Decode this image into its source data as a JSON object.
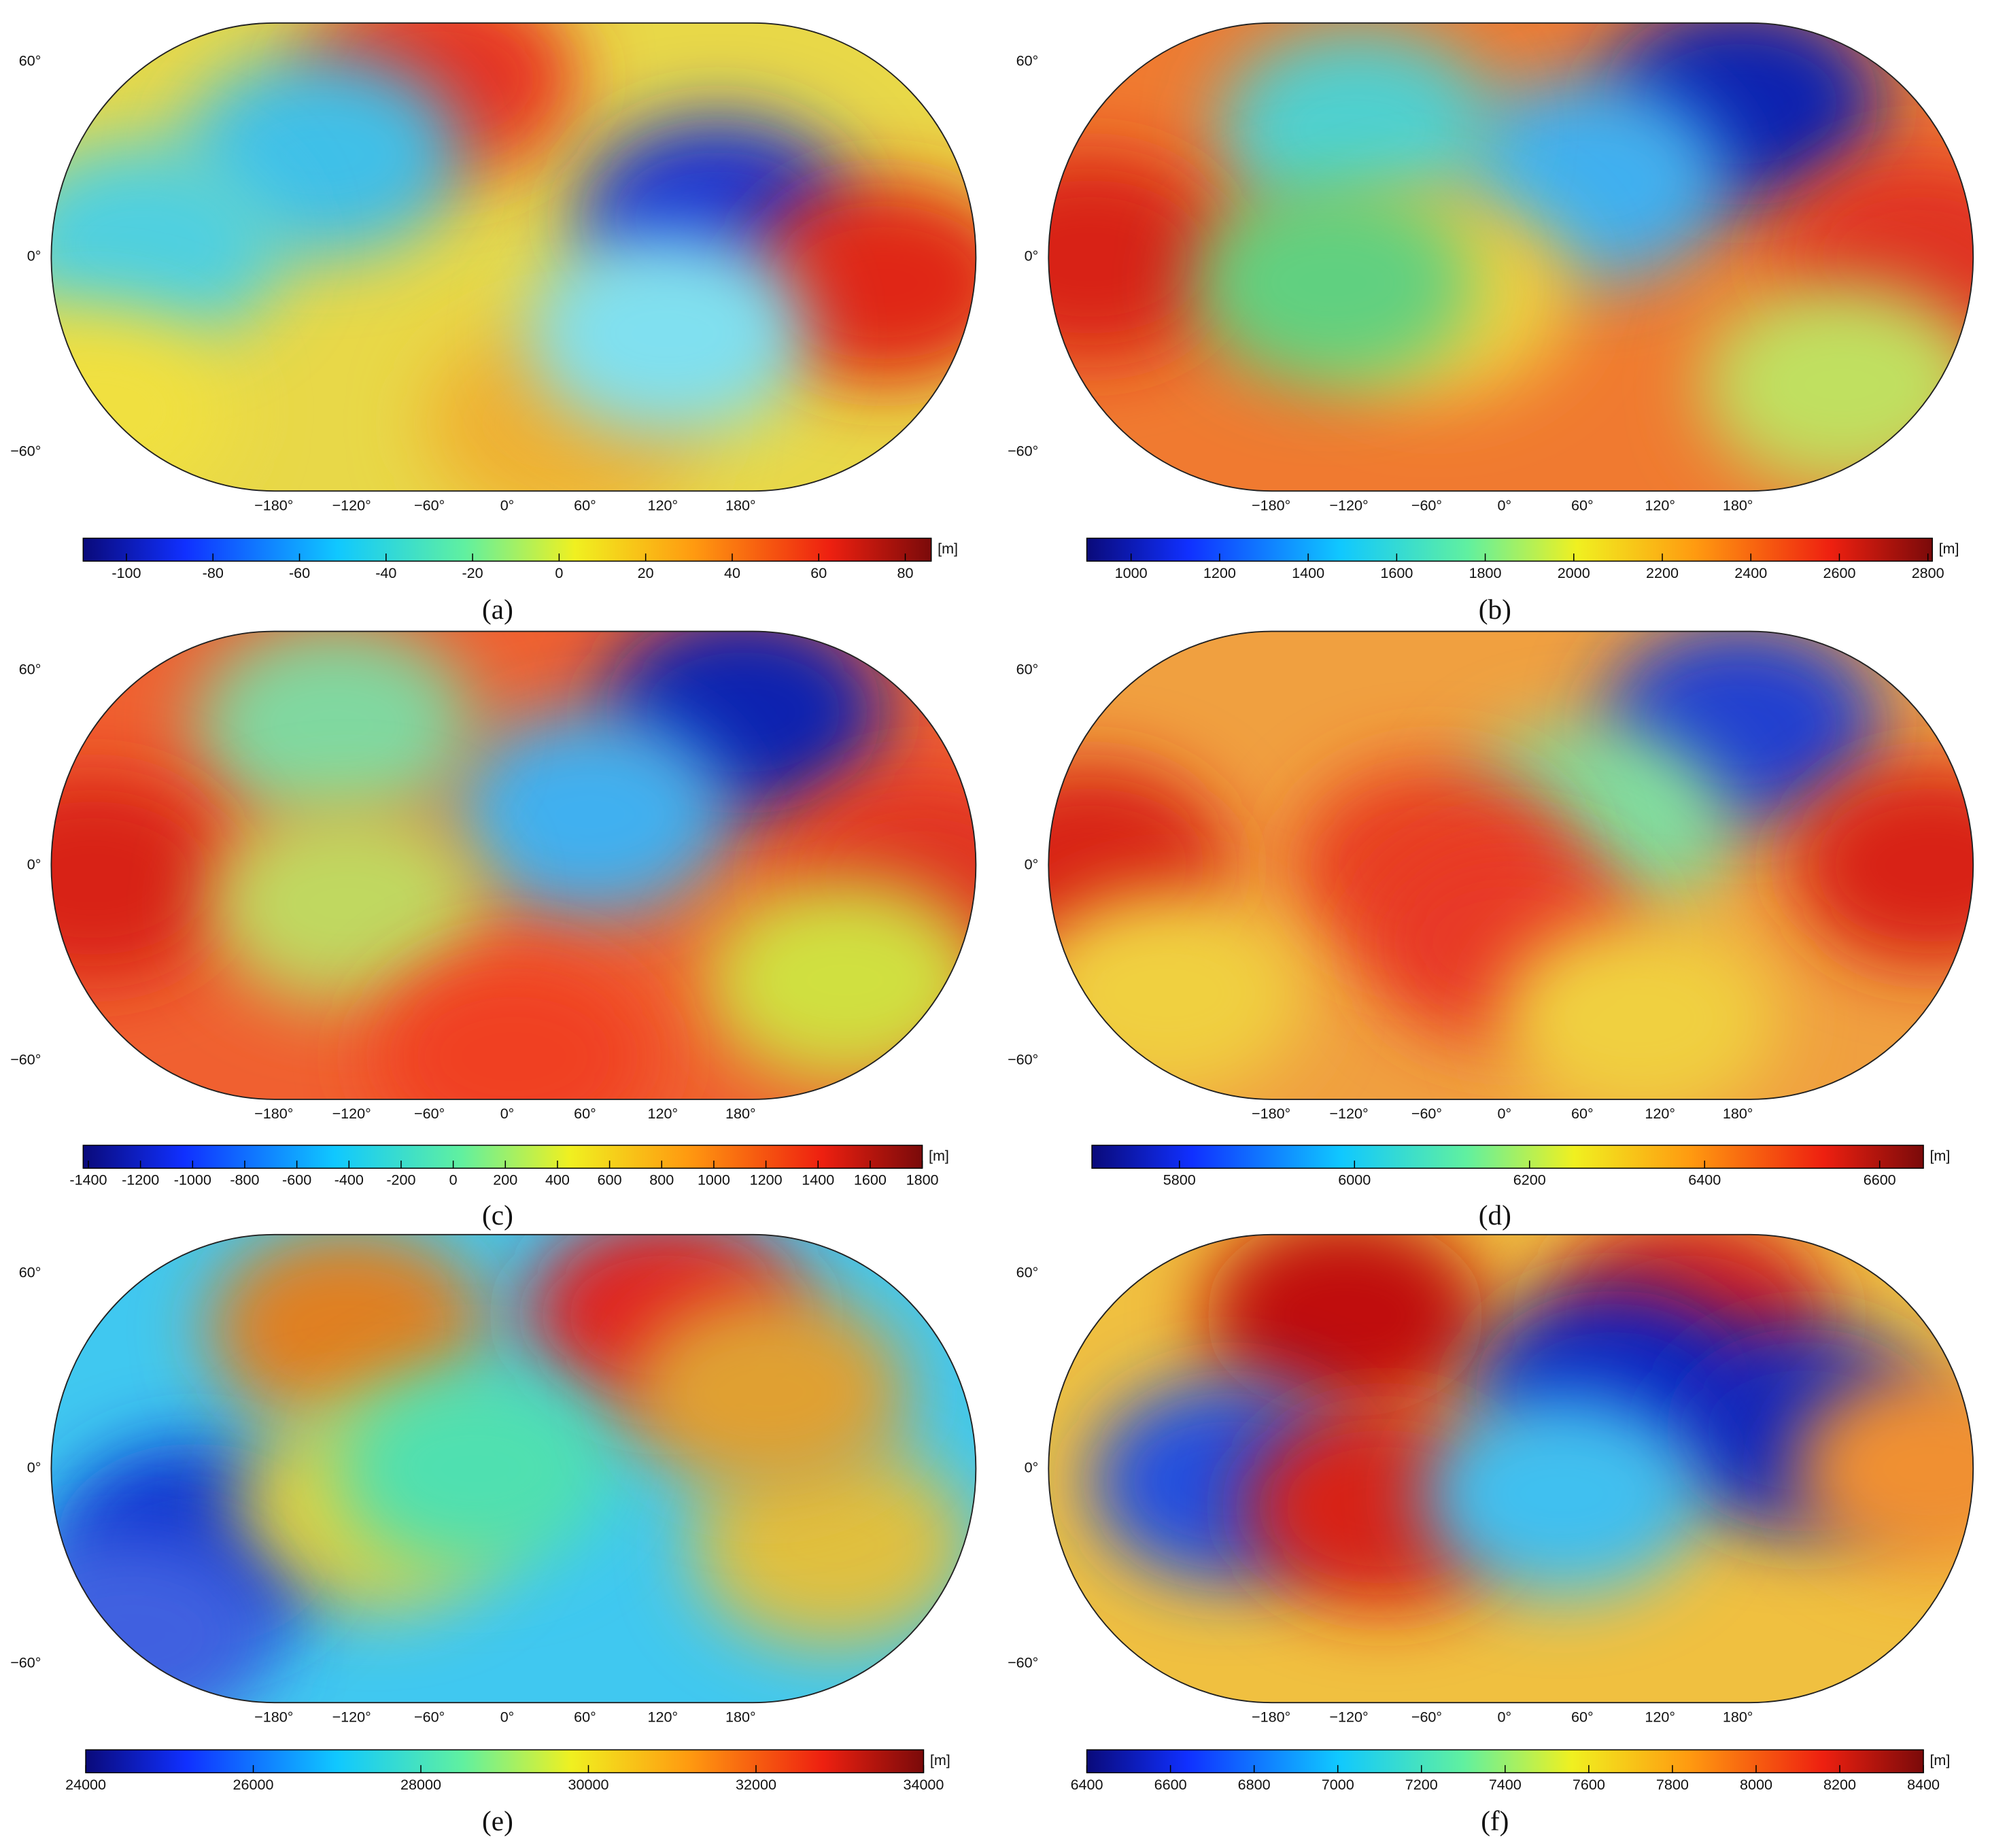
{
  "panels": [
    {
      "label": "(a)",
      "lat_ticks": [
        {
          "value": 60,
          "label": "60°"
        },
        {
          "value": 0,
          "label": "0°"
        },
        {
          "value": -60,
          "label": "−60°"
        }
      ],
      "lon_ticks": [
        {
          "value": -180,
          "label": "−180°"
        },
        {
          "value": -120,
          "label": "−120°"
        },
        {
          "value": -60,
          "label": "−60°"
        },
        {
          "value": 0,
          "label": "0°"
        },
        {
          "value": 60,
          "label": "60°"
        },
        {
          "value": 120,
          "label": "120°"
        },
        {
          "value": 180,
          "label": "180°"
        }
      ],
      "colorbar": {
        "unit": "[m]",
        "range": [
          -110,
          86
        ],
        "ticks": [
          -100,
          -80,
          -60,
          -40,
          -20,
          0,
          20,
          40,
          60,
          80
        ]
      }
    },
    {
      "label": "(b)",
      "lat_ticks": [
        {
          "value": 60,
          "label": "60°"
        },
        {
          "value": 0,
          "label": "0°"
        },
        {
          "value": -60,
          "label": "−60°"
        }
      ],
      "lon_ticks": [
        {
          "value": -180,
          "label": "−180°"
        },
        {
          "value": -120,
          "label": "−120°"
        },
        {
          "value": -60,
          "label": "−60°"
        },
        {
          "value": 0,
          "label": "0°"
        },
        {
          "value": 60,
          "label": "60°"
        },
        {
          "value": 120,
          "label": "120°"
        },
        {
          "value": 180,
          "label": "180°"
        }
      ],
      "colorbar": {
        "unit": "[m]",
        "range": [
          900,
          2810
        ],
        "ticks": [
          1000,
          1200,
          1400,
          1600,
          1800,
          2000,
          2200,
          2400,
          2600,
          2800
        ]
      }
    },
    {
      "label": "(c)",
      "lat_ticks": [
        {
          "value": 60,
          "label": "60°"
        },
        {
          "value": 0,
          "label": "0°"
        },
        {
          "value": -60,
          "label": "−60°"
        }
      ],
      "lon_ticks": [
        {
          "value": -180,
          "label": "−180°"
        },
        {
          "value": -120,
          "label": "−120°"
        },
        {
          "value": -60,
          "label": "−60°"
        },
        {
          "value": 0,
          "label": "0°"
        },
        {
          "value": 60,
          "label": "60°"
        },
        {
          "value": 120,
          "label": "120°"
        },
        {
          "value": 180,
          "label": "180°"
        }
      ],
      "colorbar": {
        "unit": "[m]",
        "range": [
          -1420,
          1800
        ],
        "ticks": [
          -1400,
          -1200,
          -1000,
          -800,
          -600,
          -400,
          -200,
          0,
          200,
          400,
          600,
          800,
          1000,
          1200,
          1400,
          1600,
          1800
        ]
      }
    },
    {
      "label": "(d)",
      "lat_ticks": [
        {
          "value": 60,
          "label": "60°"
        },
        {
          "value": 0,
          "label": "0°"
        },
        {
          "value": -60,
          "label": "−60°"
        }
      ],
      "lon_ticks": [
        {
          "value": -180,
          "label": "−180°"
        },
        {
          "value": -120,
          "label": "−120°"
        },
        {
          "value": -60,
          "label": "−60°"
        },
        {
          "value": 0,
          "label": "0°"
        },
        {
          "value": 60,
          "label": "60°"
        },
        {
          "value": 120,
          "label": "120°"
        },
        {
          "value": 180,
          "label": "180°"
        }
      ],
      "colorbar": {
        "unit": "[m]",
        "range": [
          5700,
          6650
        ],
        "ticks": [
          5800,
          6000,
          6200,
          6400,
          6600
        ]
      }
    },
    {
      "label": "(e)",
      "lat_ticks": [
        {
          "value": 60,
          "label": "60°"
        },
        {
          "value": 0,
          "label": "0°"
        },
        {
          "value": -60,
          "label": "−60°"
        }
      ],
      "lon_ticks": [
        {
          "value": -180,
          "label": "−180°"
        },
        {
          "value": -120,
          "label": "−120°"
        },
        {
          "value": -60,
          "label": "−60°"
        },
        {
          "value": 0,
          "label": "0°"
        },
        {
          "value": 60,
          "label": "60°"
        },
        {
          "value": 120,
          "label": "120°"
        },
        {
          "value": 180,
          "label": "180°"
        }
      ],
      "colorbar": {
        "unit": "[m]",
        "range": [
          24000,
          34000
        ],
        "ticks": [
          24000,
          26000,
          28000,
          30000,
          32000,
          34000
        ]
      }
    },
    {
      "label": "(f)",
      "lat_ticks": [
        {
          "value": 60,
          "label": "60°"
        },
        {
          "value": 0,
          "label": "0°"
        },
        {
          "value": -60,
          "label": "−60°"
        }
      ],
      "lon_ticks": [
        {
          "value": -180,
          "label": "−180°"
        },
        {
          "value": -120,
          "label": "−120°"
        },
        {
          "value": -60,
          "label": "−60°"
        },
        {
          "value": 0,
          "label": "0°"
        },
        {
          "value": 60,
          "label": "60°"
        },
        {
          "value": 120,
          "label": "120°"
        },
        {
          "value": 180,
          "label": "180°"
        }
      ],
      "colorbar": {
        "unit": "[m]",
        "range": [
          6400,
          8400
        ],
        "ticks": [
          6400,
          6600,
          6800,
          7000,
          7200,
          7400,
          7600,
          7800,
          8000,
          8200,
          8400
        ]
      }
    }
  ]
}
